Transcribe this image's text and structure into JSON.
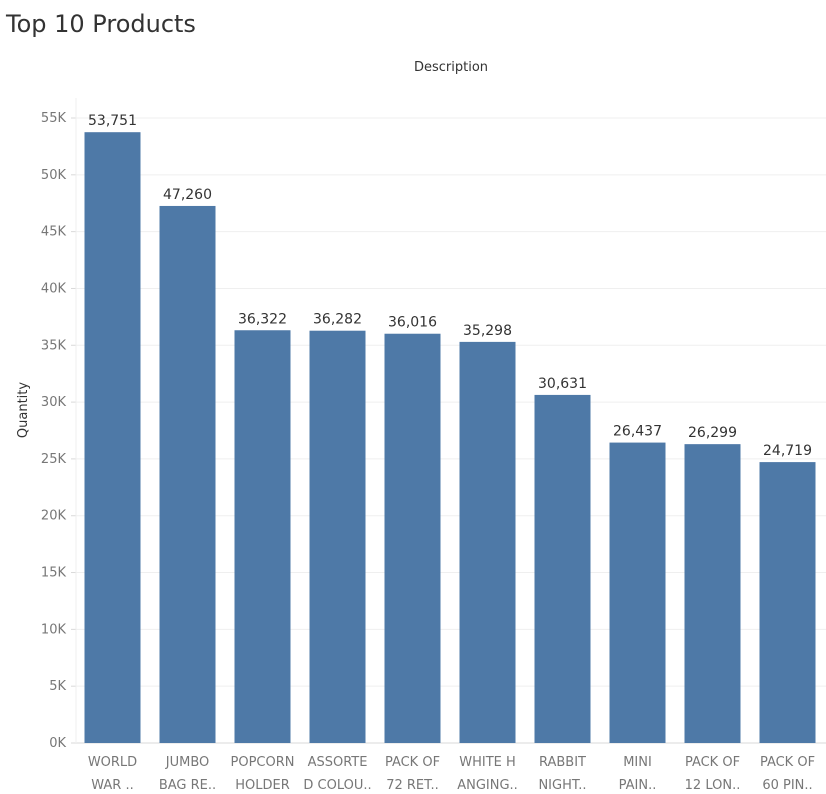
{
  "chart_data": {
    "type": "bar",
    "title": "Top 10 Products",
    "header": "Description",
    "ylabel": "Quantity",
    "ylim": [
      0,
      55000
    ],
    "yticks": [
      0,
      5000,
      10000,
      15000,
      20000,
      25000,
      30000,
      35000,
      40000,
      45000,
      50000,
      55000
    ],
    "ytick_labels": [
      "0K",
      "5K",
      "10K",
      "15K",
      "20K",
      "25K",
      "30K",
      "35K",
      "40K",
      "45K",
      "50K",
      "55K"
    ],
    "categories": [
      [
        "WORLD",
        "WAR .."
      ],
      [
        "JUMBO",
        "BAG RE.."
      ],
      [
        "POPCORN",
        "HOLDER"
      ],
      [
        "ASSORTE",
        "D COLOU.."
      ],
      [
        "PACK OF",
        "72 RET.."
      ],
      [
        "WHITE H",
        "ANGING.."
      ],
      [
        "RABBIT",
        "NIGHT.."
      ],
      [
        "MINI",
        "PAIN.."
      ],
      [
        "PACK OF",
        "12 LON.."
      ],
      [
        "PACK OF",
        "60 PIN.."
      ]
    ],
    "values": [
      53751,
      47260,
      36322,
      36282,
      36016,
      35298,
      30631,
      26437,
      26299,
      24719
    ],
    "value_labels": [
      "53,751",
      "47,260",
      "36,322",
      "36,282",
      "36,016",
      "35,298",
      "30,631",
      "26,437",
      "26,299",
      "24,719"
    ],
    "bar_color": "#4e79a7",
    "grid": true,
    "legend": "none"
  }
}
